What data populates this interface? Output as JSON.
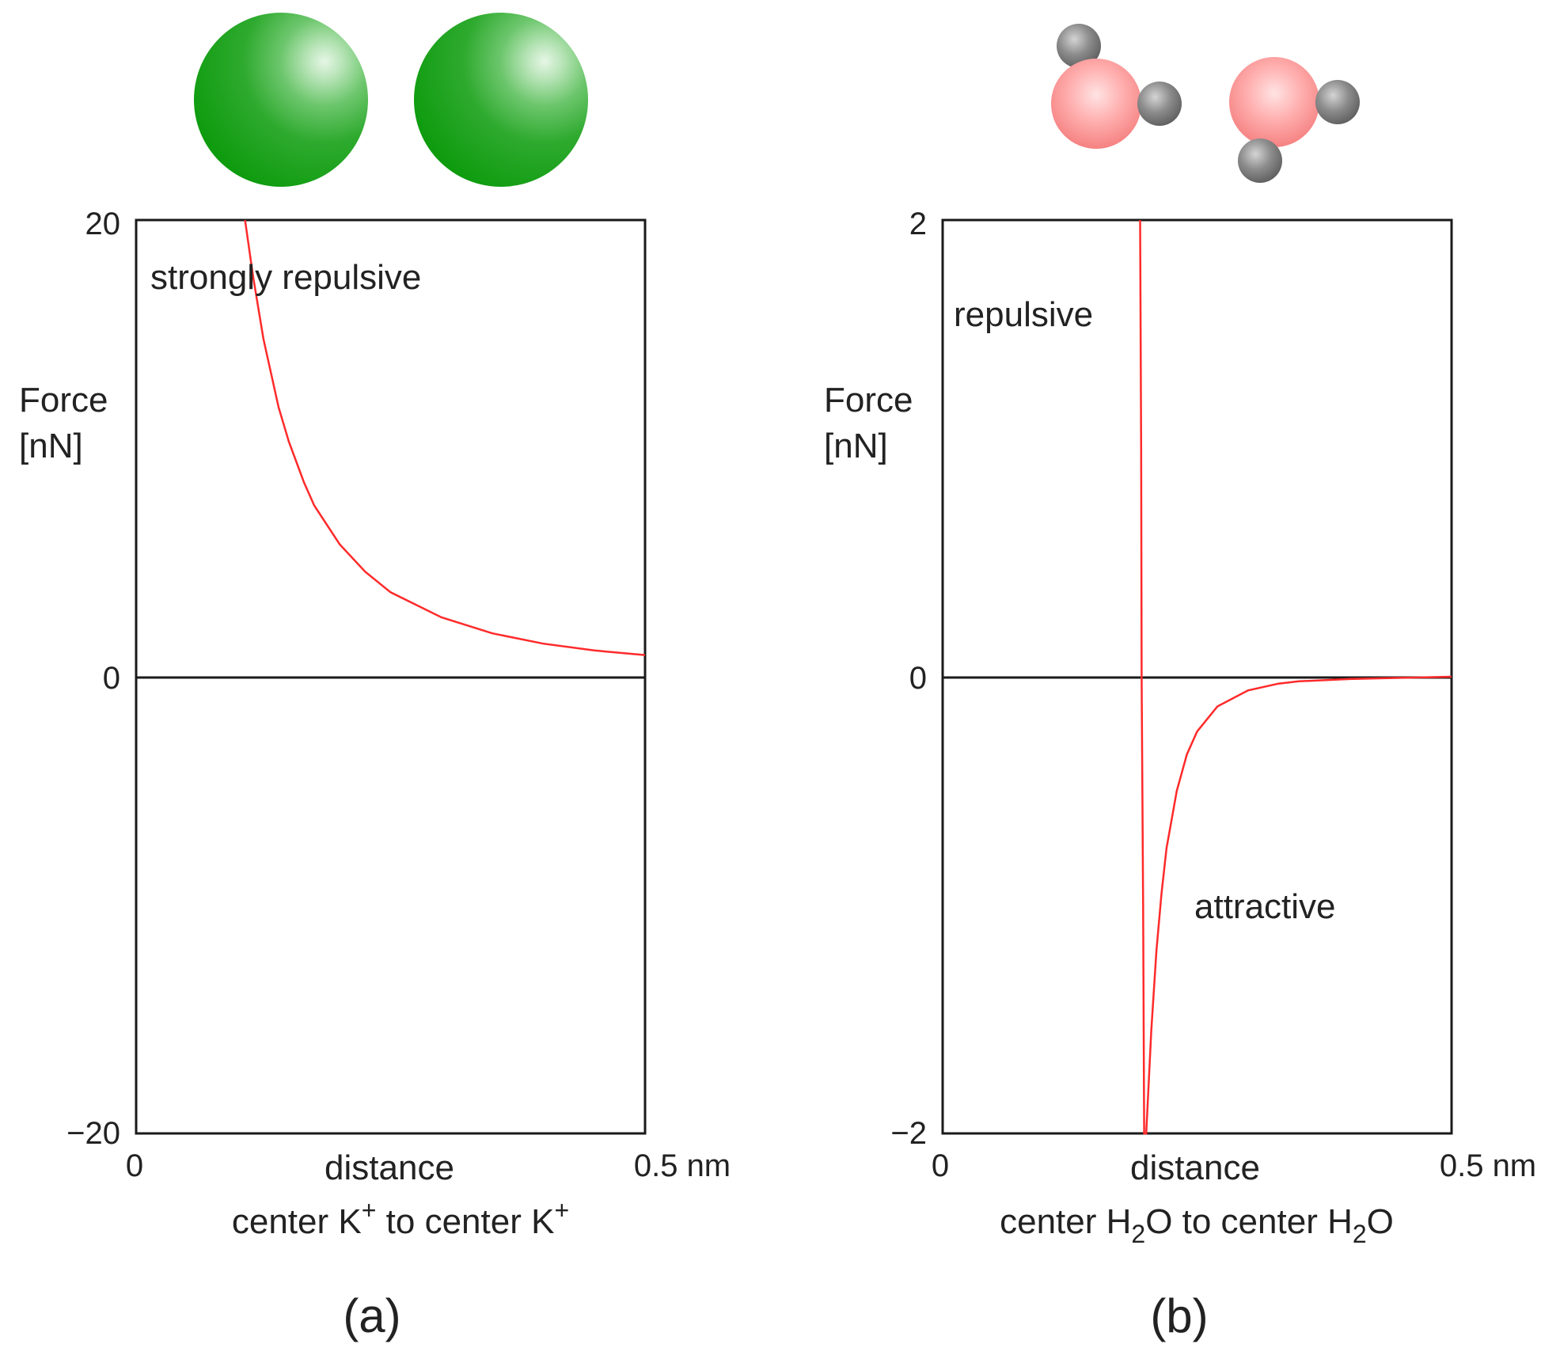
{
  "colors": {
    "curve": "#ff2a2a",
    "axis": "#1a1a1a",
    "k_ion": "#10a010",
    "oxygen": "#ff6a6a",
    "hydrogen": "#777777"
  },
  "chart_data": [
    {
      "type": "line",
      "panel_label": "(a)",
      "ylabel_line1": "Force",
      "ylabel_line2": "[nN]",
      "yticks": [
        "20",
        "0",
        "−20"
      ],
      "xticks": [
        "0",
        "0.5 nm"
      ],
      "xlabel": "distance",
      "xsublabel_main": "center K",
      "xsublabel_sup": "+",
      "xsublabel_mid": " to center K",
      "xsublabel_sup2": "+",
      "annotation": "strongly repulsive",
      "xlim": [
        0,
        0.5
      ],
      "ylim": [
        -20,
        20
      ],
      "grid": false,
      "series": [
        {
          "x": [
            0.107,
            0.115,
            0.125,
            0.14,
            0.15,
            0.165,
            0.175,
            0.2,
            0.225,
            0.25,
            0.3,
            0.35,
            0.4,
            0.45,
            0.5
          ],
          "y": [
            20,
            17.5,
            14.8,
            11.8,
            10.3,
            8.5,
            7.5,
            5.8,
            4.6,
            3.7,
            2.6,
            1.9,
            1.45,
            1.15,
            0.95
          ]
        }
      ]
    },
    {
      "type": "line",
      "panel_label": "(b)",
      "ylabel_line1": "Force",
      "ylabel_line2": "[nN]",
      "yticks": [
        "2",
        "0",
        "−2"
      ],
      "xticks": [
        "0",
        "0.5 nm"
      ],
      "xlabel": "distance",
      "xsublabel_main": "center H",
      "xsublabel_sub": "2",
      "xsublabel_mid": "O to center H",
      "xsublabel_sub2": "2",
      "xsublabel_end": "O",
      "annotation_repulsive": "repulsive",
      "annotation_attractive": "attractive",
      "xlim": [
        0,
        0.5
      ],
      "ylim": [
        -2,
        2
      ],
      "grid": false,
      "series": [
        {
          "x": [
            0.194,
            0.195,
            0.1955,
            0.197,
            0.198,
            0.2,
            0.205,
            0.21,
            0.215,
            0.22,
            0.23,
            0.24,
            0.25,
            0.27,
            0.3,
            0.33,
            0.35,
            0.4,
            0.45,
            0.5
          ],
          "y": [
            2,
            1.0,
            0,
            -1.0,
            -2,
            -2,
            -1.55,
            -1.2,
            -0.95,
            -0.75,
            -0.5,
            -0.34,
            -0.24,
            -0.13,
            -0.06,
            -0.03,
            -0.02,
            -0.01,
            -0.005,
            0
          ]
        }
      ]
    }
  ]
}
